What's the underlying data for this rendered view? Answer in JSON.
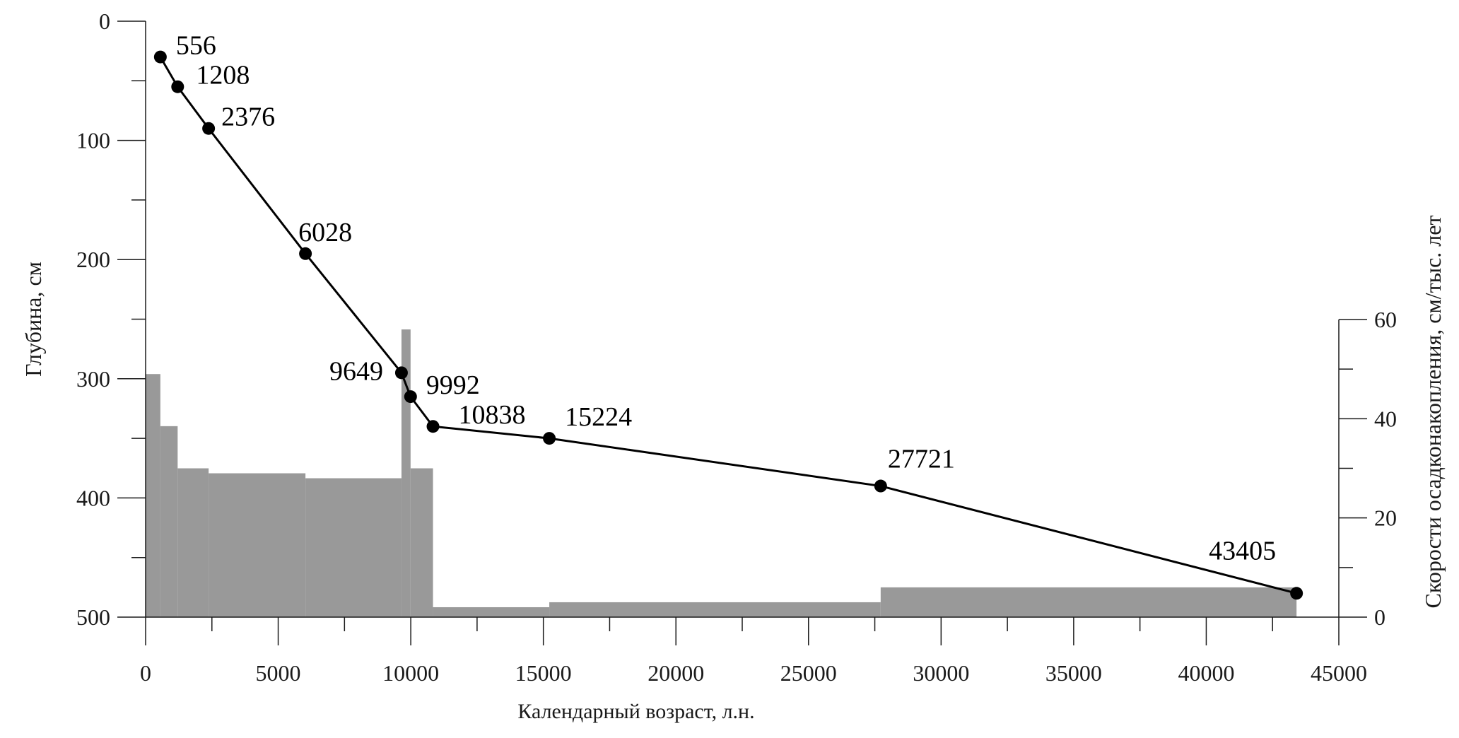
{
  "chart_data": {
    "type": "line",
    "title": "",
    "xlabel": "Календарный возраст, л.н.",
    "ylabel": "Глубина, см",
    "y2label": "Скорости осадконакопления, см/тыс. лет",
    "xlim": [
      0,
      45000
    ],
    "ylim": [
      0,
      500
    ],
    "y2lim": [
      0,
      60
    ],
    "x_ticks": [
      0,
      5000,
      10000,
      15000,
      20000,
      25000,
      30000,
      35000,
      40000,
      45000
    ],
    "y_ticks": [
      0,
      100,
      200,
      300,
      400,
      500
    ],
    "y2_ticks": [
      0,
      20,
      40,
      60
    ],
    "grid": false,
    "series": [
      {
        "type": "line",
        "points": [
          {
            "x": 556,
            "y": 30,
            "label": "556"
          },
          {
            "x": 1208,
            "y": 55,
            "label": "1208"
          },
          {
            "x": 2376,
            "y": 90,
            "label": "2376"
          },
          {
            "x": 6028,
            "y": 195,
            "label": "6028"
          },
          {
            "x": 9649,
            "y": 295,
            "label": "9649"
          },
          {
            "x": 9992,
            "y": 315,
            "label": "9992"
          },
          {
            "x": 10838,
            "y": 340,
            "label": "10838"
          },
          {
            "x": 15224,
            "y": 350,
            "label": "15224"
          },
          {
            "x": 27721,
            "y": 390,
            "label": "27721"
          },
          {
            "x": 43405,
            "y": 480,
            "label": "43405"
          }
        ],
        "color": "#000000"
      },
      {
        "type": "area",
        "axis": "right",
        "color": "#999999",
        "steps": [
          {
            "x0": 0,
            "x1": 556,
            "rate": 49
          },
          {
            "x0": 556,
            "x1": 1208,
            "rate": 38.5
          },
          {
            "x0": 1208,
            "x1": 2376,
            "rate": 30
          },
          {
            "x0": 2376,
            "x1": 6028,
            "rate": 29
          },
          {
            "x0": 6028,
            "x1": 9649,
            "rate": 28
          },
          {
            "x0": 9649,
            "x1": 9992,
            "rate": 58
          },
          {
            "x0": 9992,
            "x1": 10838,
            "rate": 30
          },
          {
            "x0": 10838,
            "x1": 15224,
            "rate": 2
          },
          {
            "x0": 15224,
            "x1": 27721,
            "rate": 3
          },
          {
            "x0": 27721,
            "x1": 43405,
            "rate": 6
          }
        ]
      }
    ]
  }
}
